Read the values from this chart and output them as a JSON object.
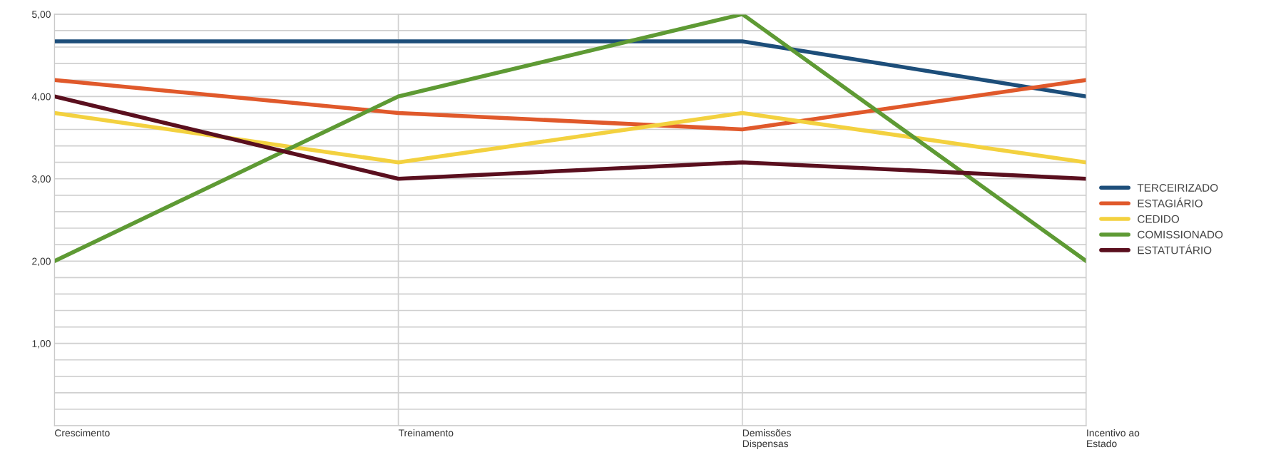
{
  "chart_data": {
    "type": "line",
    "categories": [
      "Crescimento",
      "Treinamento",
      "Demissões\nDispensas",
      "Incentivo ao\nEstado"
    ],
    "series": [
      {
        "name": "TERCEIRIZADO",
        "color": "#1d4e7a",
        "values": [
          4.67,
          4.67,
          4.67,
          4.0
        ]
      },
      {
        "name": "ESTAGIÁRIO",
        "color": "#e0592b",
        "values": [
          4.2,
          3.8,
          3.6,
          4.2
        ]
      },
      {
        "name": "CEDIDO",
        "color": "#f3d13f",
        "values": [
          3.8,
          3.2,
          3.8,
          3.2
        ]
      },
      {
        "name": "COMISSIONADO",
        "color": "#5e9a34",
        "values": [
          2.0,
          4.0,
          5.0,
          2.0
        ]
      },
      {
        "name": "ESTATUTÁRIO",
        "color": "#5a0f1e",
        "values": [
          4.0,
          3.0,
          3.2,
          3.0
        ]
      }
    ],
    "ylim": [
      0,
      5
    ],
    "yticks": [
      {
        "value": 0,
        "label": null
      },
      {
        "value": 0.2,
        "label": null
      },
      {
        "value": 0.4,
        "label": null
      },
      {
        "value": 0.6,
        "label": null
      },
      {
        "value": 0.8,
        "label": null
      },
      {
        "value": 1,
        "label": "1,00"
      },
      {
        "value": 1.2,
        "label": null
      },
      {
        "value": 1.4,
        "label": null
      },
      {
        "value": 1.6,
        "label": null
      },
      {
        "value": 1.8,
        "label": null
      },
      {
        "value": 2,
        "label": "2,00"
      },
      {
        "value": 2.2,
        "label": null
      },
      {
        "value": 2.4,
        "label": null
      },
      {
        "value": 2.6,
        "label": null
      },
      {
        "value": 2.8,
        "label": null
      },
      {
        "value": 3,
        "label": "3,00"
      },
      {
        "value": 3.2,
        "label": null
      },
      {
        "value": 3.4,
        "label": null
      },
      {
        "value": 3.6,
        "label": null
      },
      {
        "value": 3.8,
        "label": null
      },
      {
        "value": 4,
        "label": "4,00"
      },
      {
        "value": 4.2,
        "label": null
      },
      {
        "value": 4.4,
        "label": null
      },
      {
        "value": 4.6,
        "label": null
      },
      {
        "value": 4.8,
        "label": null
      },
      {
        "value": 5,
        "label": "5,00"
      }
    ],
    "grid": true,
    "legend": "right",
    "marker": "none",
    "line_style": "solid"
  }
}
